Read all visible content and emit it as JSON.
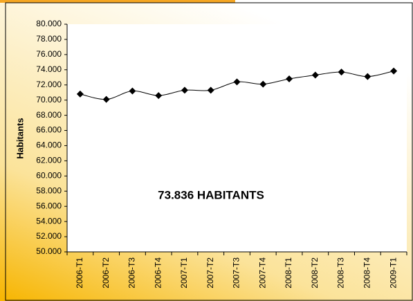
{
  "chart_data": {
    "type": "line",
    "ylabel": "Habitants",
    "annotation": "73.836 HABITANTS",
    "categories": [
      "2006-T1",
      "2006-T2",
      "2006-T3",
      "2006-T4",
      "2007-T1",
      "2007-T2",
      "2007-T3",
      "2007-T4",
      "2008-T1",
      "2008-T2",
      "2008-T3",
      "2008-T4",
      "2009-T1"
    ],
    "series": [
      {
        "name": "Habitants",
        "color": "#000000",
        "values": [
          70800,
          70100,
          71200,
          70600,
          71300,
          71300,
          72400,
          72100,
          72800,
          73300,
          73700,
          73100,
          73836
        ]
      }
    ],
    "ylim": [
      50000,
      80000
    ],
    "yticks": [
      {
        "value": 50000,
        "label": "50.000"
      },
      {
        "value": 52000,
        "label": "52.000"
      },
      {
        "value": 54000,
        "label": "54.000"
      },
      {
        "value": 56000,
        "label": "56.000"
      },
      {
        "value": 58000,
        "label": "58.000"
      },
      {
        "value": 60000,
        "label": "60.000"
      },
      {
        "value": 62000,
        "label": "62.000"
      },
      {
        "value": 64000,
        "label": "64.000"
      },
      {
        "value": 66000,
        "label": "66.000"
      },
      {
        "value": 68000,
        "label": "68.000"
      },
      {
        "value": 70000,
        "label": "70.000"
      },
      {
        "value": 72000,
        "label": "72.000"
      },
      {
        "value": 74000,
        "label": "74.000"
      },
      {
        "value": 76000,
        "label": "76.000"
      },
      {
        "value": 78000,
        "label": "78.000"
      },
      {
        "value": 80000,
        "label": "80.000"
      }
    ],
    "grid": false
  }
}
